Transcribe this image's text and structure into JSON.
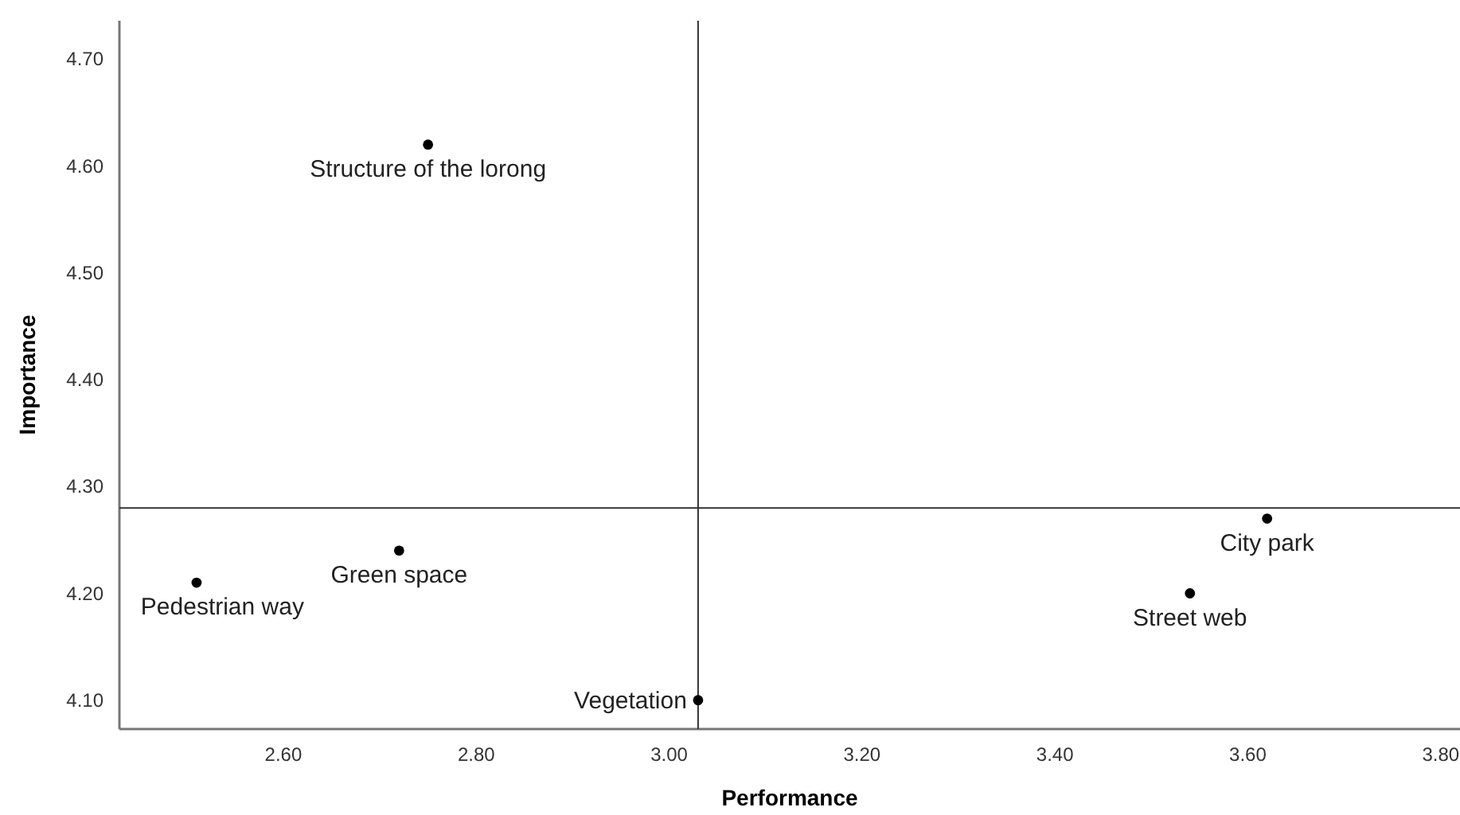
{
  "chart_data": {
    "type": "scatter",
    "xlabel": "Performance",
    "ylabel": "Importance",
    "x": [
      2.75,
      2.72,
      2.51,
      3.03,
      3.62,
      3.54
    ],
    "values": [
      4.62,
      4.24,
      4.21,
      4.1,
      4.27,
      4.2
    ],
    "color": "#000000",
    "marker": "circle",
    "grid": false,
    "xlim": [
      2.43,
      3.82
    ],
    "xticks": [
      {
        "value": 2.6,
        "label": "2.60"
      },
      {
        "value": 2.8,
        "label": "2.80"
      },
      {
        "value": 3.0,
        "label": "3.00"
      },
      {
        "value": 3.2,
        "label": "3.20"
      },
      {
        "value": 3.4,
        "label": "3.40"
      },
      {
        "value": 3.6,
        "label": "3.60"
      },
      {
        "value": 3.8,
        "label": "3.80"
      }
    ],
    "ylim": [
      4.073,
      4.736
    ],
    "yticks": [
      {
        "value": 4.1,
        "label": "4.10"
      },
      {
        "value": 4.2,
        "label": "4.20"
      },
      {
        "value": 4.3,
        "label": "4.30"
      },
      {
        "value": 4.4,
        "label": "4.40"
      },
      {
        "value": 4.5,
        "label": "4.50"
      },
      {
        "value": 4.6,
        "label": "4.60"
      },
      {
        "value": 4.7,
        "label": "4.70"
      }
    ],
    "ref_lines": [
      {
        "axis": "x",
        "value": 3.03
      },
      {
        "axis": "y",
        "value": 4.28
      }
    ],
    "annotations": [
      {
        "text": "Structure of the lorong",
        "x": 2.75,
        "y": 4.62
      },
      {
        "text": "Green space",
        "x": 2.72,
        "y": 4.24
      },
      {
        "text": "Pedestrian way",
        "x": 2.51,
        "y": 4.21
      },
      {
        "text": "Vegetation",
        "x": 3.03,
        "y": 4.1
      },
      {
        "text": "City park",
        "x": 3.62,
        "y": 4.27
      },
      {
        "text": "Street web",
        "x": 3.54,
        "y": 4.2
      }
    ]
  }
}
